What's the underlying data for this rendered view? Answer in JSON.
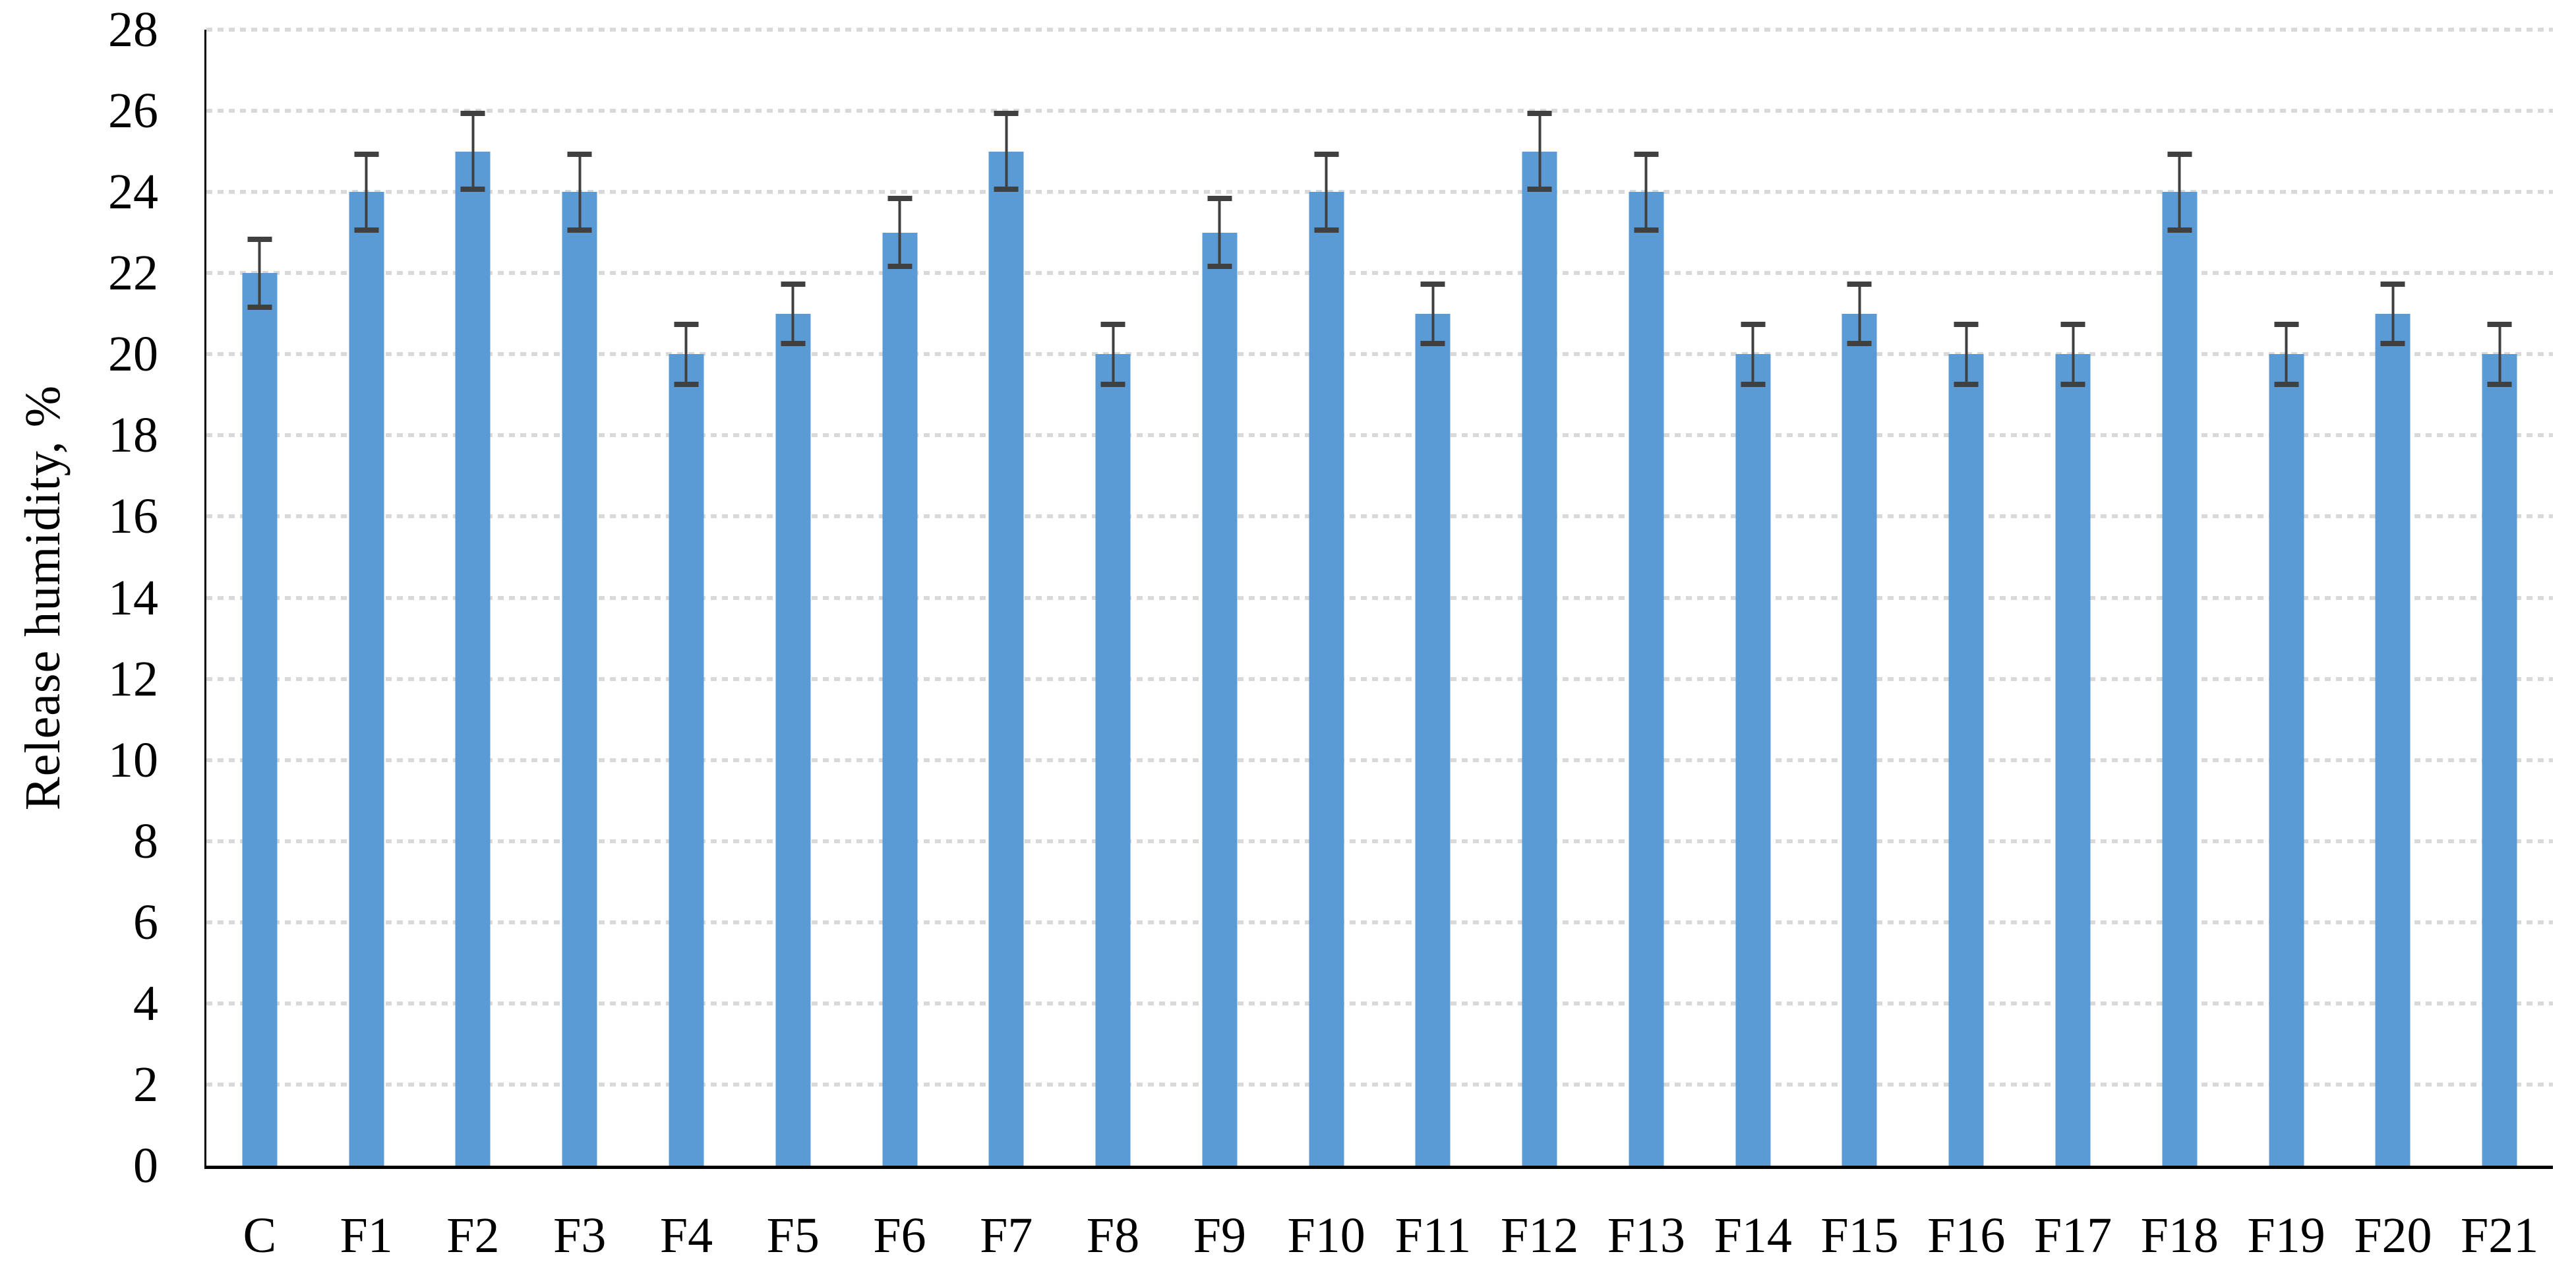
{
  "chart_data": {
    "type": "bar",
    "title": "",
    "xlabel": "",
    "ylabel": "Release humidity, %",
    "categories": [
      "C",
      "F1",
      "F2",
      "F3",
      "F4",
      "F5",
      "F6",
      "F7",
      "F8",
      "F9",
      "F10",
      "F11",
      "F12",
      "F13",
      "F14",
      "F15",
      "F16",
      "F17",
      "F18",
      "F19",
      "F20",
      "F21"
    ],
    "values": [
      22,
      24,
      25,
      24,
      20,
      21,
      23,
      25,
      20,
      23,
      24,
      21,
      25,
      24,
      20,
      21,
      20,
      20,
      24,
      20,
      21,
      20
    ],
    "errors": [
      0.9,
      1.0,
      1.0,
      1.0,
      0.8,
      0.8,
      0.9,
      1.0,
      0.8,
      0.9,
      1.0,
      0.8,
      1.0,
      1.0,
      0.8,
      0.8,
      0.8,
      0.8,
      1.0,
      0.8,
      0.8,
      0.8
    ],
    "ylim": [
      0,
      28
    ],
    "ytick_step": 2,
    "ytick_labels": [
      "0",
      "2",
      "4",
      "6",
      "8",
      "10",
      "12",
      "14",
      "16",
      "18",
      "20",
      "22",
      "24",
      "26",
      "28"
    ],
    "grid": true,
    "legend": "none",
    "colors": {
      "bar_fill": "#5B9BD5",
      "error_bar": "#404040",
      "gridline": "#D9D9D9",
      "axis_line": "#000000",
      "text": "#000000",
      "background": "#FFFFFF"
    }
  }
}
